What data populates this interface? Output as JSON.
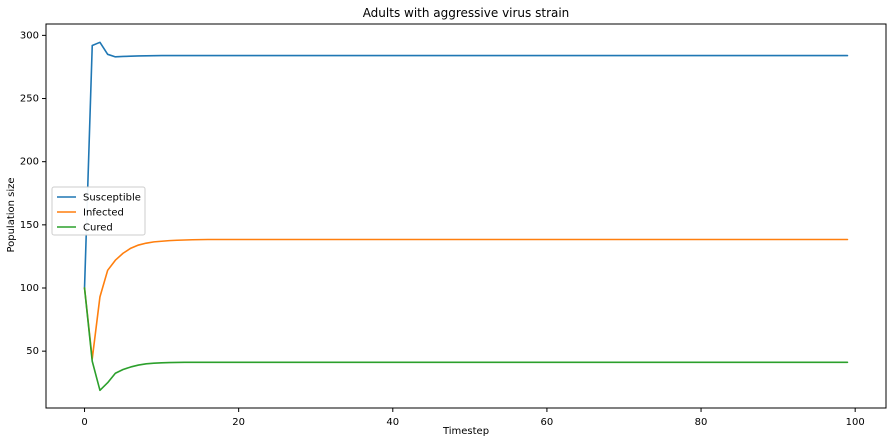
{
  "chart_data": {
    "type": "line",
    "title": "Adults with aggressive virus strain",
    "xlabel": "Timestep",
    "ylabel": "Population size",
    "xlim": [
      -5,
      104
    ],
    "ylim": [
      5,
      309
    ],
    "x_ticks": [
      0,
      20,
      40,
      60,
      80,
      100
    ],
    "y_ticks": [
      50,
      100,
      150,
      200,
      250,
      300
    ],
    "grid": false,
    "legend_position": "center-left",
    "x_start": 0,
    "x_end": 99,
    "series": [
      {
        "name": "Susceptible",
        "color": "#1f77b4",
        "values": [
          100,
          292,
          294.5,
          285,
          283,
          283.3,
          283.5,
          283.7,
          283.8,
          283.9,
          284,
          284,
          284
        ]
      },
      {
        "name": "Infected",
        "color": "#ff7f0e",
        "values": [
          100,
          44,
          93,
          114,
          122,
          127.5,
          131.5,
          134,
          135.5,
          136.5,
          137,
          137.5,
          137.8,
          138,
          138.2,
          138.3,
          138.4,
          138.4
        ]
      },
      {
        "name": "Cured",
        "color": "#2ca02c",
        "values": [
          100,
          42,
          19,
          25,
          32.5,
          35.5,
          37.5,
          39,
          40,
          40.5,
          40.8,
          41,
          41.1,
          41.2,
          41.2
        ]
      }
    ]
  }
}
